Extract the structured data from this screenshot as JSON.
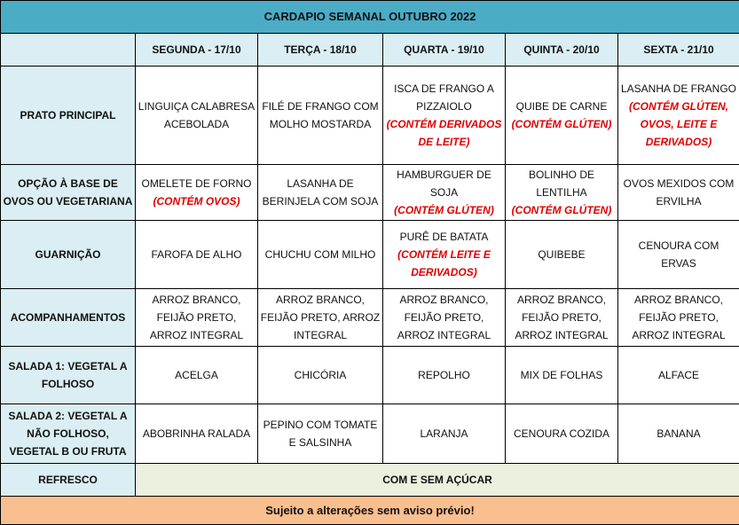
{
  "title": "CARDAPIO SEMANAL OUTUBRO 2022",
  "days": [
    "SEGUNDA - 17/10",
    "TERÇA - 18/10",
    "QUARTA - 19/10",
    "QUINTA - 20/10",
    "SEXTA - 21/10"
  ],
  "rows": [
    {
      "label": "PRATO PRINCIPAL",
      "cells": [
        {
          "text": "LINGUIÇA CALABRESA ACEBOLADA",
          "note": ""
        },
        {
          "text": "FILÉ DE FRANGO COM MOLHO MOSTARDA",
          "note": ""
        },
        {
          "text": "ISCA DE FRANGO A PIZZAIOLO",
          "note": "(CONTÉM DERIVADOS DE LEITE)"
        },
        {
          "text": "QUIBE DE CARNE",
          "note": "(CONTÉM GLÚTEN)"
        },
        {
          "text": "LASANHA DE FRANGO",
          "note": "(CONTÉM GLÚTEN, OVOS, LEITE E DERIVADOS)"
        }
      ]
    },
    {
      "label": "OPÇÃO À BASE DE OVOS OU VEGETARIANA",
      "cells": [
        {
          "text": "OMELETE DE FORNO",
          "note": "(CONTÉM OVOS)"
        },
        {
          "text": "LASANHA DE BERINJELA COM SOJA",
          "note": ""
        },
        {
          "text": "HAMBURGUER DE SOJA",
          "note": "(CONTÉM GLÚTEN)"
        },
        {
          "text": "BOLINHO DE LENTILHA",
          "note": "(CONTÉM GLÚTEN)"
        },
        {
          "text": "OVOS MEXIDOS COM ERVILHA",
          "note": ""
        }
      ]
    },
    {
      "label": "GUARNIÇÃO",
      "cells": [
        {
          "text": "FAROFA DE ALHO",
          "note": ""
        },
        {
          "text": "CHUCHU COM MILHO",
          "note": ""
        },
        {
          "text": "PURÊ DE BATATA",
          "note": "(CONTÉM LEITE E DERIVADOS)"
        },
        {
          "text": "QUIBEBE",
          "note": ""
        },
        {
          "text": "CENOURA COM ERVAS",
          "note": ""
        }
      ]
    },
    {
      "label": "ACOMPANHAMENTOS",
      "cells": [
        {
          "text": "ARROZ BRANCO, FEIJÃO PRETO, ARROZ INTEGRAL",
          "note": ""
        },
        {
          "text": "ARROZ BRANCO, FEIJÃO PRETO, ARROZ INTEGRAL",
          "note": ""
        },
        {
          "text": "ARROZ BRANCO, FEIJÃO PRETO, ARROZ INTEGRAL",
          "note": ""
        },
        {
          "text": "ARROZ BRANCO, FEIJÃO PRETO, ARROZ INTEGRAL",
          "note": ""
        },
        {
          "text": "ARROZ BRANCO, FEIJÃO PRETO, ARROZ INTEGRAL",
          "note": ""
        }
      ]
    },
    {
      "label": "SALADA 1: VEGETAL A FOLHOSO",
      "cells": [
        {
          "text": "ACELGA",
          "note": ""
        },
        {
          "text": "CHICÓRIA",
          "note": ""
        },
        {
          "text": "REPOLHO",
          "note": ""
        },
        {
          "text": "MIX DE FOLHAS",
          "note": ""
        },
        {
          "text": "ALFACE",
          "note": ""
        }
      ]
    },
    {
      "label": "SALADA 2: VEGETAL A NÃO FOLHOSO, VEGETAL B OU FRUTA",
      "cells": [
        {
          "text": "ABOBRINHA RALADA",
          "note": ""
        },
        {
          "text": "PEPINO COM TOMATE E SALSINHA",
          "note": ""
        },
        {
          "text": "LARANJA",
          "note": ""
        },
        {
          "text": "CENOURA COZIDA",
          "note": ""
        },
        {
          "text": "BANANA",
          "note": ""
        }
      ]
    }
  ],
  "refresco": {
    "label": "REFRESCO",
    "value": "COM E SEM AÇÚCAR"
  },
  "footer": "Sujeito a alterações sem aviso prévio!",
  "colors": {
    "title_bg": "#4bacc6",
    "label_bg": "#daeef3",
    "refresco_bg": "#ebf1de",
    "footer_bg": "#fabf8f",
    "allergen_text": "#e00000"
  }
}
